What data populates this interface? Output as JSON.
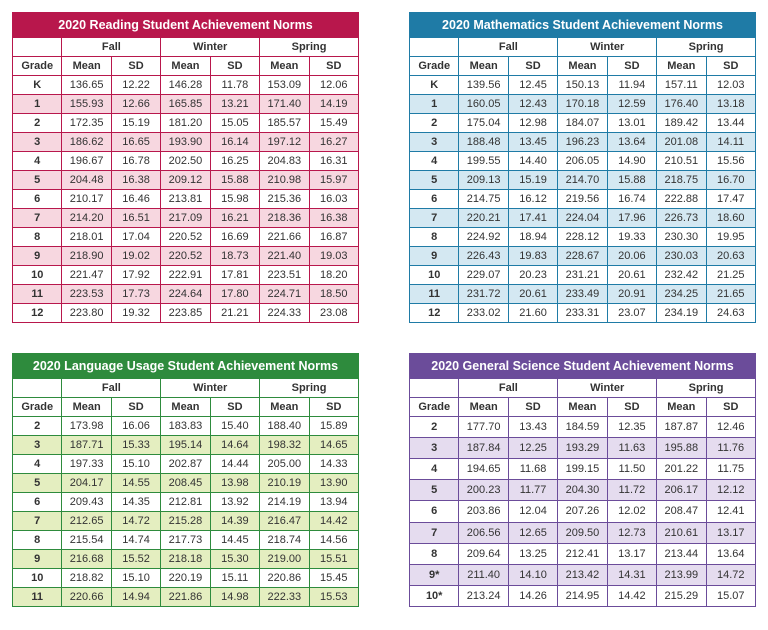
{
  "seasons": [
    "Fall",
    "Winter",
    "Spring"
  ],
  "metrics": [
    "Mean",
    "SD"
  ],
  "grade_label": "Grade",
  "tables": [
    {
      "title": "2020 Reading Student Achievement Norms",
      "header_bg": "#b8174c",
      "border_color": "#b8174c",
      "tint_color": "#f7d7e0",
      "rows": [
        {
          "grade": "K",
          "fall": {
            "mean": "136.65",
            "sd": "12.22"
          },
          "winter": {
            "mean": "146.28",
            "sd": "11.78"
          },
          "spring": {
            "mean": "153.09",
            "sd": "12.06"
          }
        },
        {
          "grade": "1",
          "fall": {
            "mean": "155.93",
            "sd": "12.66"
          },
          "winter": {
            "mean": "165.85",
            "sd": "13.21"
          },
          "spring": {
            "mean": "171.40",
            "sd": "14.19"
          }
        },
        {
          "grade": "2",
          "fall": {
            "mean": "172.35",
            "sd": "15.19"
          },
          "winter": {
            "mean": "181.20",
            "sd": "15.05"
          },
          "spring": {
            "mean": "185.57",
            "sd": "15.49"
          }
        },
        {
          "grade": "3",
          "fall": {
            "mean": "186.62",
            "sd": "16.65"
          },
          "winter": {
            "mean": "193.90",
            "sd": "16.14"
          },
          "spring": {
            "mean": "197.12",
            "sd": "16.27"
          }
        },
        {
          "grade": "4",
          "fall": {
            "mean": "196.67",
            "sd": "16.78"
          },
          "winter": {
            "mean": "202.50",
            "sd": "16.25"
          },
          "spring": {
            "mean": "204.83",
            "sd": "16.31"
          }
        },
        {
          "grade": "5",
          "fall": {
            "mean": "204.48",
            "sd": "16.38"
          },
          "winter": {
            "mean": "209.12",
            "sd": "15.88"
          },
          "spring": {
            "mean": "210.98",
            "sd": "15.97"
          }
        },
        {
          "grade": "6",
          "fall": {
            "mean": "210.17",
            "sd": "16.46"
          },
          "winter": {
            "mean": "213.81",
            "sd": "15.98"
          },
          "spring": {
            "mean": "215.36",
            "sd": "16.03"
          }
        },
        {
          "grade": "7",
          "fall": {
            "mean": "214.20",
            "sd": "16.51"
          },
          "winter": {
            "mean": "217.09",
            "sd": "16.21"
          },
          "spring": {
            "mean": "218.36",
            "sd": "16.38"
          }
        },
        {
          "grade": "8",
          "fall": {
            "mean": "218.01",
            "sd": "17.04"
          },
          "winter": {
            "mean": "220.52",
            "sd": "16.69"
          },
          "spring": {
            "mean": "221.66",
            "sd": "16.87"
          }
        },
        {
          "grade": "9",
          "fall": {
            "mean": "218.90",
            "sd": "19.02"
          },
          "winter": {
            "mean": "220.52",
            "sd": "18.73"
          },
          "spring": {
            "mean": "221.40",
            "sd": "19.03"
          }
        },
        {
          "grade": "10",
          "fall": {
            "mean": "221.47",
            "sd": "17.92"
          },
          "winter": {
            "mean": "222.91",
            "sd": "17.81"
          },
          "spring": {
            "mean": "223.51",
            "sd": "18.20"
          }
        },
        {
          "grade": "11",
          "fall": {
            "mean": "223.53",
            "sd": "17.73"
          },
          "winter": {
            "mean": "224.64",
            "sd": "17.80"
          },
          "spring": {
            "mean": "224.71",
            "sd": "18.50"
          }
        },
        {
          "grade": "12",
          "fall": {
            "mean": "223.80",
            "sd": "19.32"
          },
          "winter": {
            "mean": "223.85",
            "sd": "21.21"
          },
          "spring": {
            "mean": "224.33",
            "sd": "23.08"
          }
        }
      ]
    },
    {
      "title": "2020 Mathematics Student Achievement Norms",
      "header_bg": "#1f7ba6",
      "border_color": "#1f7ba6",
      "tint_color": "#d4e8f2",
      "rows": [
        {
          "grade": "K",
          "fall": {
            "mean": "139.56",
            "sd": "12.45"
          },
          "winter": {
            "mean": "150.13",
            "sd": "11.94"
          },
          "spring": {
            "mean": "157.11",
            "sd": "12.03"
          }
        },
        {
          "grade": "1",
          "fall": {
            "mean": "160.05",
            "sd": "12.43"
          },
          "winter": {
            "mean": "170.18",
            "sd": "12.59"
          },
          "spring": {
            "mean": "176.40",
            "sd": "13.18"
          }
        },
        {
          "grade": "2",
          "fall": {
            "mean": "175.04",
            "sd": "12.98"
          },
          "winter": {
            "mean": "184.07",
            "sd": "13.01"
          },
          "spring": {
            "mean": "189.42",
            "sd": "13.44"
          }
        },
        {
          "grade": "3",
          "fall": {
            "mean": "188.48",
            "sd": "13.45"
          },
          "winter": {
            "mean": "196.23",
            "sd": "13.64"
          },
          "spring": {
            "mean": "201.08",
            "sd": "14.11"
          }
        },
        {
          "grade": "4",
          "fall": {
            "mean": "199.55",
            "sd": "14.40"
          },
          "winter": {
            "mean": "206.05",
            "sd": "14.90"
          },
          "spring": {
            "mean": "210.51",
            "sd": "15.56"
          }
        },
        {
          "grade": "5",
          "fall": {
            "mean": "209.13",
            "sd": "15.19"
          },
          "winter": {
            "mean": "214.70",
            "sd": "15.88"
          },
          "spring": {
            "mean": "218.75",
            "sd": "16.70"
          }
        },
        {
          "grade": "6",
          "fall": {
            "mean": "214.75",
            "sd": "16.12"
          },
          "winter": {
            "mean": "219.56",
            "sd": "16.74"
          },
          "spring": {
            "mean": "222.88",
            "sd": "17.47"
          }
        },
        {
          "grade": "7",
          "fall": {
            "mean": "220.21",
            "sd": "17.41"
          },
          "winter": {
            "mean": "224.04",
            "sd": "17.96"
          },
          "spring": {
            "mean": "226.73",
            "sd": "18.60"
          }
        },
        {
          "grade": "8",
          "fall": {
            "mean": "224.92",
            "sd": "18.94"
          },
          "winter": {
            "mean": "228.12",
            "sd": "19.33"
          },
          "spring": {
            "mean": "230.30",
            "sd": "19.95"
          }
        },
        {
          "grade": "9",
          "fall": {
            "mean": "226.43",
            "sd": "19.83"
          },
          "winter": {
            "mean": "228.67",
            "sd": "20.06"
          },
          "spring": {
            "mean": "230.03",
            "sd": "20.63"
          }
        },
        {
          "grade": "10",
          "fall": {
            "mean": "229.07",
            "sd": "20.23"
          },
          "winter": {
            "mean": "231.21",
            "sd": "20.61"
          },
          "spring": {
            "mean": "232.42",
            "sd": "21.25"
          }
        },
        {
          "grade": "11",
          "fall": {
            "mean": "231.72",
            "sd": "20.61"
          },
          "winter": {
            "mean": "233.49",
            "sd": "20.91"
          },
          "spring": {
            "mean": "234.25",
            "sd": "21.65"
          }
        },
        {
          "grade": "12",
          "fall": {
            "mean": "233.02",
            "sd": "21.60"
          },
          "winter": {
            "mean": "233.31",
            "sd": "23.07"
          },
          "spring": {
            "mean": "234.19",
            "sd": "24.63"
          }
        }
      ]
    },
    {
      "title": "2020 Language Usage Student Achievement Norms",
      "header_bg": "#2e8b3d",
      "border_color": "#2e8b3d",
      "tint_color": "#e4eec0",
      "rows": [
        {
          "grade": "2",
          "fall": {
            "mean": "173.98",
            "sd": "16.06"
          },
          "winter": {
            "mean": "183.83",
            "sd": "15.40"
          },
          "spring": {
            "mean": "188.40",
            "sd": "15.89"
          }
        },
        {
          "grade": "3",
          "fall": {
            "mean": "187.71",
            "sd": "15.33"
          },
          "winter": {
            "mean": "195.14",
            "sd": "14.64"
          },
          "spring": {
            "mean": "198.32",
            "sd": "14.65"
          }
        },
        {
          "grade": "4",
          "fall": {
            "mean": "197.33",
            "sd": "15.10"
          },
          "winter": {
            "mean": "202.87",
            "sd": "14.44"
          },
          "spring": {
            "mean": "205.00",
            "sd": "14.33"
          }
        },
        {
          "grade": "5",
          "fall": {
            "mean": "204.17",
            "sd": "14.55"
          },
          "winter": {
            "mean": "208.45",
            "sd": "13.98"
          },
          "spring": {
            "mean": "210.19",
            "sd": "13.90"
          }
        },
        {
          "grade": "6",
          "fall": {
            "mean": "209.43",
            "sd": "14.35"
          },
          "winter": {
            "mean": "212.81",
            "sd": "13.92"
          },
          "spring": {
            "mean": "214.19",
            "sd": "13.94"
          }
        },
        {
          "grade": "7",
          "fall": {
            "mean": "212.65",
            "sd": "14.72"
          },
          "winter": {
            "mean": "215.28",
            "sd": "14.39"
          },
          "spring": {
            "mean": "216.47",
            "sd": "14.42"
          }
        },
        {
          "grade": "8",
          "fall": {
            "mean": "215.54",
            "sd": "14.74"
          },
          "winter": {
            "mean": "217.73",
            "sd": "14.45"
          },
          "spring": {
            "mean": "218.74",
            "sd": "14.56"
          }
        },
        {
          "grade": "9",
          "fall": {
            "mean": "216.68",
            "sd": "15.52"
          },
          "winter": {
            "mean": "218.18",
            "sd": "15.30"
          },
          "spring": {
            "mean": "219.00",
            "sd": "15.51"
          }
        },
        {
          "grade": "10",
          "fall": {
            "mean": "218.82",
            "sd": "15.10"
          },
          "winter": {
            "mean": "220.19",
            "sd": "15.11"
          },
          "spring": {
            "mean": "220.86",
            "sd": "15.45"
          }
        },
        {
          "grade": "11",
          "fall": {
            "mean": "220.66",
            "sd": "14.94"
          },
          "winter": {
            "mean": "221.86",
            "sd": "14.98"
          },
          "spring": {
            "mean": "222.33",
            "sd": "15.53"
          }
        }
      ]
    },
    {
      "title": "2020 General Science Student Achievement Norms",
      "header_bg": "#6b4c9a",
      "border_color": "#6b4c9a",
      "tint_color": "#e5dcef",
      "rows": [
        {
          "grade": "2",
          "fall": {
            "mean": "177.70",
            "sd": "13.43"
          },
          "winter": {
            "mean": "184.59",
            "sd": "12.35"
          },
          "spring": {
            "mean": "187.87",
            "sd": "12.46"
          }
        },
        {
          "grade": "3",
          "fall": {
            "mean": "187.84",
            "sd": "12.25"
          },
          "winter": {
            "mean": "193.29",
            "sd": "11.63"
          },
          "spring": {
            "mean": "195.88",
            "sd": "11.76"
          }
        },
        {
          "grade": "4",
          "fall": {
            "mean": "194.65",
            "sd": "11.68"
          },
          "winter": {
            "mean": "199.15",
            "sd": "11.50"
          },
          "spring": {
            "mean": "201.22",
            "sd": "11.75"
          }
        },
        {
          "grade": "5",
          "fall": {
            "mean": "200.23",
            "sd": "11.77"
          },
          "winter": {
            "mean": "204.30",
            "sd": "11.72"
          },
          "spring": {
            "mean": "206.17",
            "sd": "12.12"
          }
        },
        {
          "grade": "6",
          "fall": {
            "mean": "203.86",
            "sd": "12.04"
          },
          "winter": {
            "mean": "207.26",
            "sd": "12.02"
          },
          "spring": {
            "mean": "208.47",
            "sd": "12.41"
          }
        },
        {
          "grade": "7",
          "fall": {
            "mean": "206.56",
            "sd": "12.65"
          },
          "winter": {
            "mean": "209.50",
            "sd": "12.73"
          },
          "spring": {
            "mean": "210.61",
            "sd": "13.17"
          }
        },
        {
          "grade": "8",
          "fall": {
            "mean": "209.64",
            "sd": "13.25"
          },
          "winter": {
            "mean": "212.41",
            "sd": "13.17"
          },
          "spring": {
            "mean": "213.44",
            "sd": "13.64"
          }
        },
        {
          "grade": "9*",
          "fall": {
            "mean": "211.40",
            "sd": "14.10"
          },
          "winter": {
            "mean": "213.42",
            "sd": "14.31"
          },
          "spring": {
            "mean": "213.99",
            "sd": "14.72"
          }
        },
        {
          "grade": "10*",
          "fall": {
            "mean": "213.24",
            "sd": "14.26"
          },
          "winter": {
            "mean": "214.95",
            "sd": "14.42"
          },
          "spring": {
            "mean": "215.29",
            "sd": "15.07"
          }
        }
      ]
    }
  ]
}
